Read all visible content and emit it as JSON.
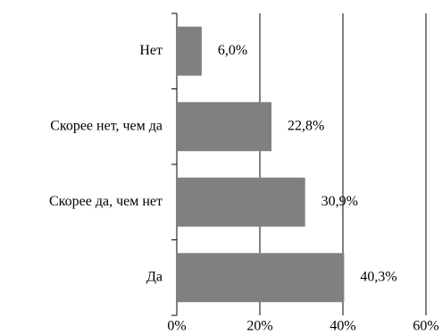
{
  "chart_data": {
    "type": "bar",
    "orientation": "horizontal",
    "categories": [
      "Нет",
      "Скорее нет, чем да",
      "Скорее да, чем нет",
      "Да"
    ],
    "values": [
      6.0,
      22.8,
      30.9,
      40.3
    ],
    "value_labels": [
      "6,0%",
      "22,8%",
      "30,9%",
      "40,3%"
    ],
    "color": "#808080",
    "xlim": [
      0,
      60
    ],
    "xticks": [
      {
        "value": 0,
        "label": "0%"
      },
      {
        "value": 20,
        "label": "20%"
      },
      {
        "value": 40,
        "label": "40%"
      },
      {
        "value": 60,
        "label": "60%"
      }
    ],
    "grid": true
  }
}
